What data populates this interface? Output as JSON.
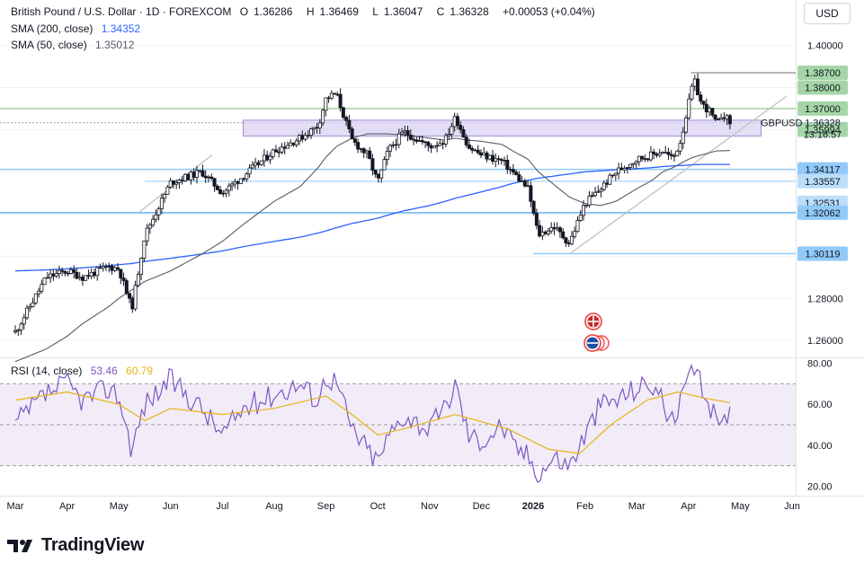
{
  "header": {
    "symbol_title": "British Pound / U.S. Dollar · 1D · FOREXCOM",
    "ohlc": [
      {
        "key": "O",
        "value": "1.36286"
      },
      {
        "key": "H",
        "value": "1.36469"
      },
      {
        "key": "L",
        "value": "1.36047"
      },
      {
        "key": "C",
        "value": "1.36328"
      }
    ],
    "change": "+0.00053 (+0.04%)",
    "currency": "USD"
  },
  "indicators": {
    "sma200": {
      "label": "SMA (200, close)",
      "value": "1.34352",
      "color": "#2962ff"
    },
    "sma50": {
      "label": "SMA (50, close)",
      "value": "1.35012",
      "color": "#555b66"
    },
    "rsi": {
      "label": "RSI (14, close)",
      "value": "53.46",
      "ma_value": "60.79",
      "color": "#7e57c2",
      "ma_color": "#e7b416"
    }
  },
  "price_axis": {
    "ticks": [
      "1.40000",
      "1.28000",
      "1.26000"
    ],
    "last_price": {
      "symbol": "GBPUSD",
      "value": "1.36328",
      "countdown": "13:16:57"
    },
    "level_labels": [
      {
        "value": "1.38700",
        "style": "green"
      },
      {
        "value": "1.38000",
        "style": "green"
      },
      {
        "value": "1.37000",
        "style": "green"
      },
      {
        "value": "1.36022",
        "style": "blue"
      },
      {
        "value": "1.35994",
        "style": "green"
      },
      {
        "value": "1.34117",
        "style": "blue"
      },
      {
        "value": "1.33557",
        "style": "lightblue"
      },
      {
        "value": "1.32531",
        "style": "lightblue"
      },
      {
        "value": "1.32062",
        "style": "blue"
      },
      {
        "value": "1.30119",
        "style": "blue"
      }
    ]
  },
  "rsi_axis": {
    "ticks": [
      "80.00",
      "60.00",
      "40.00",
      "20.00"
    ]
  },
  "time_axis": {
    "labels": [
      "Mar",
      "Apr",
      "May",
      "Jun",
      "Jul",
      "Aug",
      "Sep",
      "Oct",
      "Nov",
      "Dec",
      "2026",
      "Feb",
      "Mar",
      "Apr",
      "May",
      "Jun"
    ]
  },
  "footer": {
    "brand": "TradingView"
  },
  "colors": {
    "up": "#131722",
    "down": "#131722",
    "zone": "#d9d2f3",
    "green_label": "#a5d6a7",
    "blue_label": "#bbdefb"
  },
  "chart_data": {
    "type": "candlestick",
    "timeframe": "1D",
    "ylim": [
      1.252,
      1.41
    ],
    "rsi_ylim": [
      20,
      80
    ],
    "rsi_bands": [
      70,
      50,
      30
    ],
    "anchors": [
      {
        "x": 0.0,
        "price": 1.264,
        "rsi": 50,
        "sma200": 1.293,
        "sma50": 1.25
      },
      {
        "x": 0.6,
        "price": 1.29,
        "rsi": 65,
        "sma200": 1.2935,
        "sma50": 1.256
      },
      {
        "x": 1.0,
        "price": 1.293,
        "rsi": 70,
        "sma200": 1.294,
        "sma50": 1.262
      },
      {
        "x": 1.3,
        "price": 1.29,
        "rsi": 62,
        "sma200": 1.2945,
        "sma50": 1.268
      },
      {
        "x": 1.8,
        "price": 1.295,
        "rsi": 68,
        "sma200": 1.2955,
        "sma50": 1.276
      },
      {
        "x": 2.0,
        "price": 1.294,
        "rsi": 64,
        "sma200": 1.296,
        "sma50": 1.28
      },
      {
        "x": 2.25,
        "price": 1.275,
        "rsi": 38,
        "sma200": 1.2965,
        "sma50": 1.284
      },
      {
        "x": 2.5,
        "price": 1.31,
        "rsi": 60,
        "sma200": 1.2975,
        "sma50": 1.288
      },
      {
        "x": 3.0,
        "price": 1.335,
        "rsi": 72,
        "sma200": 1.299,
        "sma50": 1.293
      },
      {
        "x": 3.6,
        "price": 1.34,
        "rsi": 58,
        "sma200": 1.301,
        "sma50": 1.301
      },
      {
        "x": 4.0,
        "price": 1.33,
        "rsi": 45,
        "sma200": 1.3025,
        "sma50": 1.307
      },
      {
        "x": 4.4,
        "price": 1.338,
        "rsi": 58,
        "sma200": 1.3045,
        "sma50": 1.315
      },
      {
        "x": 5.0,
        "price": 1.35,
        "rsi": 65,
        "sma200": 1.307,
        "sma50": 1.326
      },
      {
        "x": 5.5,
        "price": 1.356,
        "rsi": 70,
        "sma200": 1.309,
        "sma50": 1.333
      },
      {
        "x": 5.85,
        "price": 1.362,
        "rsi": 62,
        "sma200": 1.311,
        "sma50": 1.342
      },
      {
        "x": 6.0,
        "price": 1.375,
        "rsi": 74,
        "sma200": 1.312,
        "sma50": 1.347
      },
      {
        "x": 6.2,
        "price": 1.377,
        "rsi": 71,
        "sma200": 1.3135,
        "sma50": 1.352
      },
      {
        "x": 6.5,
        "price": 1.355,
        "rsi": 48,
        "sma200": 1.3155,
        "sma50": 1.356
      },
      {
        "x": 6.8,
        "price": 1.348,
        "rsi": 38,
        "sma200": 1.317,
        "sma50": 1.358
      },
      {
        "x": 7.0,
        "price": 1.335,
        "rsi": 32,
        "sma200": 1.318,
        "sma50": 1.358
      },
      {
        "x": 7.2,
        "price": 1.35,
        "rsi": 44,
        "sma200": 1.3195,
        "sma50": 1.358
      },
      {
        "x": 7.5,
        "price": 1.359,
        "rsi": 55,
        "sma200": 1.3215,
        "sma50": 1.3575
      },
      {
        "x": 8.0,
        "price": 1.352,
        "rsi": 48,
        "sma200": 1.324,
        "sma50": 1.356
      },
      {
        "x": 8.3,
        "price": 1.355,
        "rsi": 58,
        "sma200": 1.326,
        "sma50": 1.355
      },
      {
        "x": 8.5,
        "price": 1.366,
        "rsi": 70,
        "sma200": 1.3275,
        "sma50": 1.356
      },
      {
        "x": 8.75,
        "price": 1.352,
        "rsi": 45,
        "sma200": 1.329,
        "sma50": 1.355
      },
      {
        "x": 9.0,
        "price": 1.348,
        "rsi": 42,
        "sma200": 1.3305,
        "sma50": 1.3545
      },
      {
        "x": 9.4,
        "price": 1.345,
        "rsi": 50,
        "sma200": 1.333,
        "sma50": 1.353
      },
      {
        "x": 9.6,
        "price": 1.34,
        "rsi": 40,
        "sma200": 1.3345,
        "sma50": 1.35
      },
      {
        "x": 9.9,
        "price": 1.332,
        "rsi": 35,
        "sma200": 1.336,
        "sma50": 1.346
      },
      {
        "x": 10.1,
        "price": 1.31,
        "rsi": 26,
        "sma200": 1.337,
        "sma50": 1.34
      },
      {
        "x": 10.4,
        "price": 1.314,
        "rsi": 34,
        "sma200": 1.338,
        "sma50": 1.334
      },
      {
        "x": 10.7,
        "price": 1.306,
        "rsi": 30,
        "sma200": 1.339,
        "sma50": 1.328
      },
      {
        "x": 11.0,
        "price": 1.325,
        "rsi": 45,
        "sma200": 1.34,
        "sma50": 1.325
      },
      {
        "x": 11.3,
        "price": 1.332,
        "rsi": 60,
        "sma200": 1.3405,
        "sma50": 1.324
      },
      {
        "x": 11.6,
        "price": 1.34,
        "rsi": 62,
        "sma200": 1.341,
        "sma50": 1.326
      },
      {
        "x": 12.0,
        "price": 1.346,
        "rsi": 68,
        "sma200": 1.3415,
        "sma50": 1.332
      },
      {
        "x": 12.3,
        "price": 1.348,
        "rsi": 70,
        "sma200": 1.342,
        "sma50": 1.336
      },
      {
        "x": 12.5,
        "price": 1.35,
        "rsi": 62,
        "sma200": 1.3425,
        "sma50": 1.34
      },
      {
        "x": 12.7,
        "price": 1.346,
        "rsi": 50,
        "sma200": 1.3428,
        "sma50": 1.342
      },
      {
        "x": 12.85,
        "price": 1.355,
        "rsi": 60,
        "sma200": 1.343,
        "sma50": 1.344
      },
      {
        "x": 13.0,
        "price": 1.372,
        "rsi": 72,
        "sma200": 1.3432,
        "sma50": 1.346
      },
      {
        "x": 13.1,
        "price": 1.384,
        "rsi": 78,
        "sma200": 1.3434,
        "sma50": 1.347
      },
      {
        "x": 13.25,
        "price": 1.372,
        "rsi": 68,
        "sma200": 1.3435,
        "sma50": 1.348
      },
      {
        "x": 13.4,
        "price": 1.369,
        "rsi": 60,
        "sma200": 1.3435,
        "sma50": 1.349
      },
      {
        "x": 13.55,
        "price": 1.362,
        "rsi": 50,
        "sma200": 1.3435,
        "sma50": 1.35
      },
      {
        "x": 13.65,
        "price": 1.368,
        "rsi": 58,
        "sma200": 1.3435,
        "sma50": 1.35
      },
      {
        "x": 13.8,
        "price": 1.3633,
        "rsi": 53.46,
        "sma200": 1.34352,
        "sma50": 1.35012
      }
    ],
    "rsi_ma_anchors": [
      {
        "x": 0.0,
        "v": 62
      },
      {
        "x": 1.0,
        "v": 66
      },
      {
        "x": 2.0,
        "v": 60
      },
      {
        "x": 2.5,
        "v": 52
      },
      {
        "x": 3.0,
        "v": 58
      },
      {
        "x": 4.0,
        "v": 55
      },
      {
        "x": 5.0,
        "v": 58
      },
      {
        "x": 6.0,
        "v": 64
      },
      {
        "x": 6.5,
        "v": 55
      },
      {
        "x": 7.0,
        "v": 45
      },
      {
        "x": 7.5,
        "v": 48
      },
      {
        "x": 8.5,
        "v": 55
      },
      {
        "x": 9.5,
        "v": 48
      },
      {
        "x": 10.3,
        "v": 38
      },
      {
        "x": 10.9,
        "v": 36
      },
      {
        "x": 11.5,
        "v": 50
      },
      {
        "x": 12.2,
        "v": 62
      },
      {
        "x": 12.8,
        "v": 66
      },
      {
        "x": 13.3,
        "v": 63
      },
      {
        "x": 13.8,
        "v": 60.79
      }
    ],
    "horizontal_levels": [
      {
        "price": 1.387,
        "color": "#9e9e9e",
        "from_x": 13.05
      },
      {
        "price": 1.37,
        "color": "#a5d6a7",
        "from_x": 0
      },
      {
        "price": 1.36328,
        "color": "#9e9e9e",
        "from_x": 0,
        "dashed": true
      },
      {
        "price": 1.34117,
        "color": "#90caf9",
        "from_x": 0
      },
      {
        "price": 1.33557,
        "color": "#bbdefb",
        "from_x": 2.5
      },
      {
        "price": 1.32062,
        "color": "#64b5f6",
        "from_x": 0
      },
      {
        "price": 1.30119,
        "color": "#90caf9",
        "from_x": 10.0
      }
    ],
    "zone": {
      "x1": 4.4,
      "x2": 14.4,
      "y_top": 1.3645,
      "y_bottom": 1.357
    },
    "trendlines": [
      {
        "x1": 2.4,
        "y1": 1.321,
        "x2": 3.8,
        "y2": 1.348
      },
      {
        "x1": 10.7,
        "y1": 1.301,
        "x2": 14.9,
        "y2": 1.376
      }
    ]
  }
}
